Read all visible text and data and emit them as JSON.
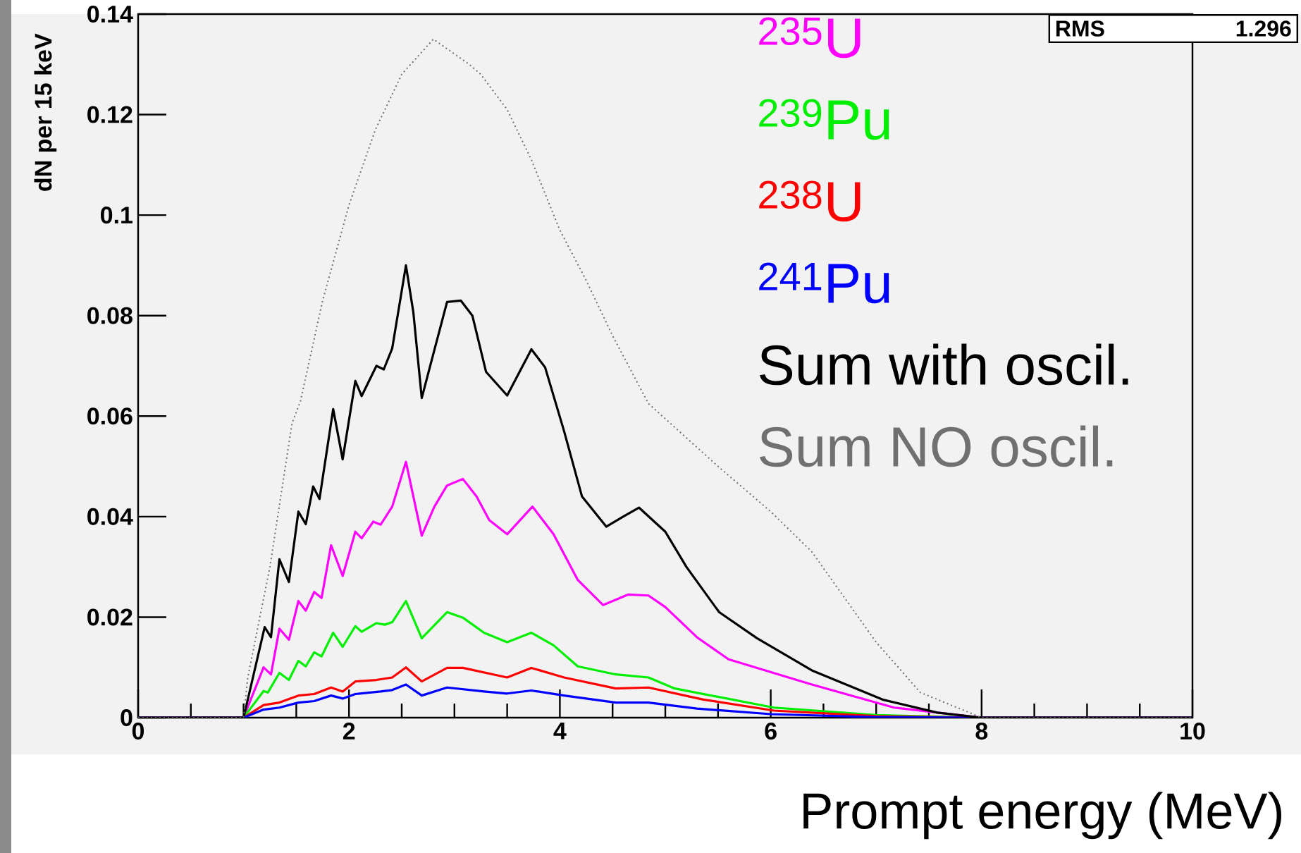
{
  "chart_data": {
    "type": "line",
    "xlabel": "Prompt energy (MeV)",
    "ylabel": "dN per 15 keV",
    "xlim": [
      0,
      10
    ],
    "ylim": [
      0,
      0.14
    ],
    "xticks": [
      0,
      2,
      4,
      6,
      8,
      10
    ],
    "yticks": [
      0,
      0.02,
      0.04,
      0.06,
      0.08,
      0.1,
      0.12,
      0.14
    ],
    "legend": "top right",
    "annotations": [
      "RMS",
      "1.296"
    ],
    "series": [
      {
        "name": "$^{235}$U",
        "color": "#ff00ff",
        "x": [
          0,
          1,
          1.19,
          1.26,
          1.34,
          1.43,
          1.52,
          1.59,
          1.67,
          1.74,
          1.83,
          1.94,
          2.06,
          2.12,
          2.23,
          2.3,
          2.41,
          2.54,
          2.69,
          2.81,
          2.93,
          3.08,
          3.21,
          3.33,
          3.5,
          3.74,
          3.94,
          4.17,
          4.41,
          4.65,
          4.84,
          5.0,
          5.3,
          5.6,
          6.39,
          7.17,
          8,
          10
        ],
        "values": [
          0,
          0,
          0.01,
          0.0086,
          0.0177,
          0.0155,
          0.0232,
          0.0213,
          0.025,
          0.0238,
          0.0343,
          0.0282,
          0.037,
          0.0357,
          0.039,
          0.0384,
          0.042,
          0.0509,
          0.0362,
          0.042,
          0.0462,
          0.0475,
          0.044,
          0.0393,
          0.0365,
          0.042,
          0.0365,
          0.0274,
          0.0224,
          0.0245,
          0.0243,
          0.022,
          0.016,
          0.0116,
          0.0066,
          0.002,
          0,
          0
        ]
      },
      {
        "name": "$^{239}$Pu",
        "color": "#00ee00",
        "x": [
          0,
          1,
          1.19,
          1.23,
          1.34,
          1.43,
          1.52,
          1.59,
          1.67,
          1.74,
          1.85,
          1.94,
          2.06,
          2.12,
          2.26,
          2.34,
          2.41,
          2.54,
          2.69,
          2.93,
          3.08,
          3.28,
          3.5,
          3.73,
          3.94,
          4.17,
          4.53,
          4.84,
          5.09,
          6.03,
          7.0,
          8,
          10
        ],
        "values": [
          0,
          0,
          0.0053,
          0.005,
          0.0089,
          0.0075,
          0.0113,
          0.0102,
          0.013,
          0.0122,
          0.0169,
          0.0141,
          0.0182,
          0.0171,
          0.0188,
          0.0185,
          0.019,
          0.0232,
          0.0158,
          0.021,
          0.0199,
          0.0169,
          0.015,
          0.0169,
          0.0144,
          0.0102,
          0.0086,
          0.008,
          0.0058,
          0.002,
          0.0005,
          0,
          0
        ]
      },
      {
        "name": "$^{238}$U",
        "color": "#ff0000",
        "x": [
          0,
          1,
          1.19,
          1.34,
          1.52,
          1.67,
          1.83,
          1.94,
          2.06,
          2.26,
          2.41,
          2.54,
          2.69,
          2.93,
          3.08,
          3.5,
          3.73,
          4.04,
          4.53,
          4.84,
          5.36,
          6.03,
          7.0,
          8,
          10
        ],
        "values": [
          0,
          0,
          0.0025,
          0.003,
          0.0044,
          0.0047,
          0.006,
          0.0052,
          0.0072,
          0.0075,
          0.008,
          0.01,
          0.0072,
          0.0099,
          0.0099,
          0.008,
          0.0099,
          0.008,
          0.0058,
          0.006,
          0.0036,
          0.0014,
          0.0003,
          0,
          0
        ]
      },
      {
        "name": "$^{241}$Pu",
        "color": "#0000ff",
        "x": [
          0,
          1,
          1.19,
          1.34,
          1.52,
          1.67,
          1.83,
          1.94,
          2.06,
          2.3,
          2.41,
          2.54,
          2.69,
          2.93,
          3.28,
          3.5,
          3.73,
          4.04,
          4.53,
          4.84,
          5.3,
          6.0,
          7.0,
          8,
          10
        ],
        "values": [
          0,
          0,
          0.0016,
          0.002,
          0.003,
          0.0033,
          0.0044,
          0.0038,
          0.0047,
          0.0052,
          0.0055,
          0.0066,
          0.0044,
          0.006,
          0.0052,
          0.0048,
          0.0054,
          0.0044,
          0.003,
          0.003,
          0.0018,
          0.0007,
          0.0001,
          0,
          0
        ]
      },
      {
        "name": "Sum with oscil.",
        "color": "#000000",
        "x": [
          0,
          1,
          1.2,
          1.26,
          1.34,
          1.43,
          1.52,
          1.59,
          1.66,
          1.72,
          1.85,
          1.94,
          2.06,
          2.12,
          2.26,
          2.33,
          2.41,
          2.54,
          2.61,
          2.69,
          2.79,
          2.93,
          3.06,
          3.17,
          3.3,
          3.5,
          3.73,
          3.86,
          4.04,
          4.21,
          4.44,
          4.6,
          4.75,
          5.0,
          5.2,
          5.51,
          5.87,
          6.39,
          7.06,
          7.58,
          8,
          10
        ],
        "values": [
          0,
          0,
          0.018,
          0.016,
          0.0315,
          0.027,
          0.041,
          0.0385,
          0.046,
          0.0435,
          0.0614,
          0.0514,
          0.067,
          0.064,
          0.07,
          0.0693,
          0.0735,
          0.09,
          0.0807,
          0.0636,
          0.0716,
          0.0827,
          0.083,
          0.08,
          0.0688,
          0.0641,
          0.0733,
          0.0697,
          0.057,
          0.044,
          0.038,
          0.04,
          0.0418,
          0.037,
          0.03,
          0.021,
          0.0158,
          0.0094,
          0.0036,
          0.001,
          0,
          0
        ]
      },
      {
        "name": "Sum NO oscil.",
        "color": "#707070",
        "line_style": "dotted",
        "x": [
          0,
          1,
          1.04,
          1.25,
          1.46,
          1.54,
          1.75,
          2.0,
          2.25,
          2.5,
          2.8,
          3.14,
          3.25,
          3.5,
          3.73,
          4.0,
          4.25,
          4.5,
          4.84,
          5.5,
          6.0,
          6.39,
          7.0,
          7.42,
          8,
          10
        ],
        "values": [
          0,
          0,
          0.008,
          0.03,
          0.0586,
          0.063,
          0.083,
          0.102,
          0.117,
          0.128,
          0.135,
          0.13,
          0.128,
          0.121,
          0.111,
          0.097,
          0.087,
          0.076,
          0.0625,
          0.05,
          0.041,
          0.033,
          0.015,
          0.005,
          0,
          0
        ]
      }
    ]
  }
}
